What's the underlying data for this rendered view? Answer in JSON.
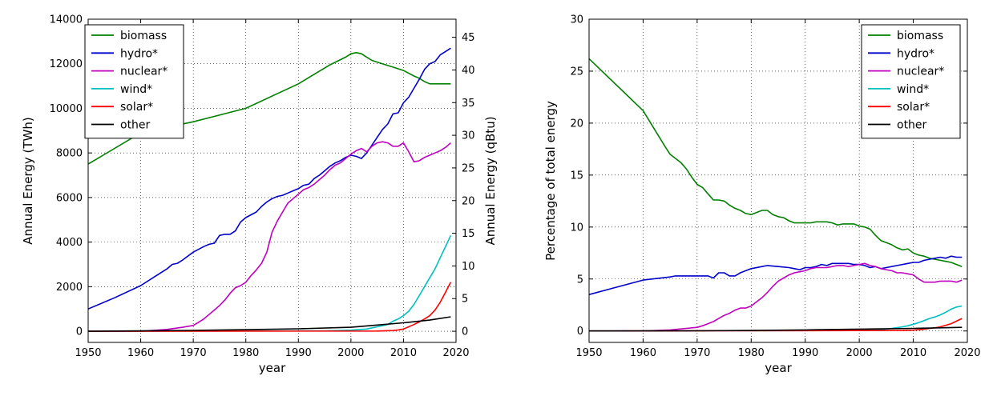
{
  "chart_data": [
    {
      "type": "line",
      "xlabel": "year",
      "ylabel": "Annual Energy (TWh)",
      "ylabel_right": "Annual Energy (qBtu)",
      "xlim": [
        1950,
        2020
      ],
      "ylim": [
        -500,
        14000
      ],
      "ylim_right": [
        -1.706,
        47.77
      ],
      "xticks": [
        1950,
        1960,
        1970,
        1980,
        1990,
        2000,
        2010,
        2020
      ],
      "yticks": [
        0,
        2000,
        4000,
        6000,
        8000,
        10000,
        12000,
        14000
      ],
      "yticks_right": [
        0,
        5,
        10,
        15,
        20,
        25,
        30,
        35,
        40,
        45
      ],
      "grid": true,
      "legend_position": "top-left",
      "series": [
        {
          "name": "biomass",
          "color": "#008000",
          "x": [
            1950,
            1960,
            1970,
            1980,
            1990,
            1996,
            1999,
            2000,
            2001,
            2002,
            2003,
            2004,
            2006,
            2008,
            2010,
            2012,
            2013,
            2014,
            2015,
            2016,
            2017,
            2018,
            2019
          ],
          "y": [
            7500,
            8900,
            9400,
            10000,
            11100,
            11950,
            12300,
            12450,
            12500,
            12450,
            12300,
            12150,
            12000,
            11850,
            11700,
            11450,
            11350,
            11200,
            11100,
            11100,
            11100,
            11100,
            11100
          ]
        },
        {
          "name": "hydro*",
          "color": "#0000cc",
          "x": [
            1950,
            1955,
            1960,
            1963,
            1965,
            1966,
            1967,
            1968,
            1970,
            1972,
            1973,
            1974,
            1975,
            1976,
            1977,
            1978,
            1979,
            1980,
            1982,
            1983,
            1984,
            1985,
            1986,
            1987,
            1988,
            1989,
            1990,
            1991,
            1992,
            1993,
            1994,
            1995,
            1996,
            1997,
            1998,
            1999,
            2000,
            2001,
            2002,
            2003,
            2004,
            2005,
            2006,
            2007,
            2008,
            2009,
            2010,
            2011,
            2012,
            2013,
            2014,
            2015,
            2016,
            2017,
            2018,
            2019
          ],
          "y": [
            1000,
            1500,
            2050,
            2500,
            2800,
            3000,
            3050,
            3200,
            3550,
            3800,
            3900,
            3950,
            4300,
            4350,
            4350,
            4500,
            4900,
            5100,
            5350,
            5600,
            5800,
            5950,
            6050,
            6100,
            6200,
            6300,
            6400,
            6550,
            6600,
            6850,
            7000,
            7200,
            7400,
            7550,
            7650,
            7800,
            7900,
            7850,
            7750,
            8000,
            8350,
            8700,
            9050,
            9300,
            9750,
            9800,
            10250,
            10500,
            10900,
            11300,
            11750,
            12000,
            12100,
            12400,
            12550,
            12700
          ]
        },
        {
          "name": "nuclear*",
          "color": "#bf00bf",
          "x": [
            1950,
            1960,
            1962,
            1965,
            1968,
            1970,
            1971,
            1972,
            1973,
            1974,
            1975,
            1976,
            1977,
            1978,
            1979,
            1980,
            1981,
            1982,
            1983,
            1984,
            1985,
            1986,
            1987,
            1988,
            1989,
            1990,
            1991,
            1992,
            1993,
            1994,
            1995,
            1996,
            1997,
            1998,
            1999,
            2000,
            2001,
            2002,
            2003,
            2004,
            2005,
            2006,
            2007,
            2008,
            2009,
            2010,
            2011,
            2012,
            2013,
            2014,
            2015,
            2016,
            2017,
            2018,
            2019
          ],
          "y": [
            0,
            0,
            30,
            80,
            180,
            260,
            400,
            550,
            750,
            950,
            1150,
            1400,
            1700,
            1950,
            2050,
            2200,
            2500,
            2750,
            3050,
            3550,
            4450,
            4950,
            5350,
            5750,
            5950,
            6150,
            6350,
            6450,
            6600,
            6800,
            7000,
            7250,
            7450,
            7550,
            7750,
            7950,
            8100,
            8200,
            8050,
            8300,
            8450,
            8500,
            8450,
            8300,
            8300,
            8450,
            8050,
            7600,
            7650,
            7800,
            7900,
            8000,
            8100,
            8250,
            8450
          ]
        },
        {
          "name": "wind*",
          "color": "#00bfbf",
          "x": [
            1950,
            1995,
            2000,
            2003,
            2005,
            2007,
            2008,
            2009,
            2010,
            2011,
            2012,
            2013,
            2014,
            2015,
            2016,
            2017,
            2018,
            2019
          ],
          "y": [
            0,
            20,
            50,
            100,
            200,
            300,
            450,
            550,
            700,
            900,
            1200,
            1600,
            2000,
            2400,
            2800,
            3300,
            3800,
            4300
          ]
        },
        {
          "name": "solar*",
          "color": "#ff0000",
          "x": [
            1950,
            2005,
            2008,
            2009,
            2010,
            2011,
            2012,
            2013,
            2014,
            2015,
            2016,
            2017,
            2018,
            2019
          ],
          "y": [
            0,
            10,
            30,
            60,
            100,
            200,
            300,
            420,
            550,
            700,
            950,
            1300,
            1750,
            2200
          ]
        },
        {
          "name": "other",
          "color": "#000000",
          "x": [
            1950,
            1970,
            1980,
            1990,
            2000,
            2005,
            2010,
            2015,
            2019
          ],
          "y": [
            0,
            40,
            70,
            110,
            180,
            280,
            380,
            500,
            650
          ]
        }
      ]
    },
    {
      "type": "line",
      "xlabel": "year",
      "ylabel": "Percentage of total energy",
      "xlim": [
        1950,
        2020
      ],
      "ylim": [
        -1.1,
        30
      ],
      "xticks": [
        1950,
        1960,
        1970,
        1980,
        1990,
        2000,
        2010,
        2020
      ],
      "yticks": [
        0,
        5,
        10,
        15,
        20,
        25,
        30
      ],
      "grid": true,
      "legend_position": "top-right",
      "series": [
        {
          "name": "biomass",
          "color": "#008000",
          "x": [
            1950,
            1960,
            1962,
            1964,
            1965,
            1966,
            1967,
            1968,
            1969,
            1970,
            1971,
            1972,
            1973,
            1974,
            1975,
            1976,
            1977,
            1978,
            1979,
            1980,
            1981,
            1982,
            1983,
            1984,
            1985,
            1986,
            1987,
            1988,
            1989,
            1990,
            1991,
            1992,
            1993,
            1994,
            1995,
            1996,
            1997,
            1998,
            1999,
            2000,
            2001,
            2002,
            2003,
            2004,
            2005,
            2006,
            2007,
            2008,
            2009,
            2010,
            2011,
            2012,
            2013,
            2014,
            2015,
            2016,
            2017,
            2018,
            2019
          ],
          "y": [
            26.2,
            21.2,
            19.5,
            17.8,
            17.0,
            16.6,
            16.2,
            15.6,
            14.8,
            14.1,
            13.8,
            13.2,
            12.6,
            12.6,
            12.5,
            12.1,
            11.8,
            11.6,
            11.3,
            11.2,
            11.4,
            11.6,
            11.6,
            11.2,
            11.0,
            10.9,
            10.6,
            10.4,
            10.4,
            10.4,
            10.4,
            10.5,
            10.5,
            10.5,
            10.4,
            10.2,
            10.3,
            10.3,
            10.3,
            10.1,
            10.0,
            9.8,
            9.2,
            8.7,
            8.5,
            8.3,
            8.0,
            7.8,
            7.9,
            7.5,
            7.3,
            7.2,
            7.0,
            6.9,
            6.8,
            6.7,
            6.6,
            6.4,
            6.2
          ]
        },
        {
          "name": "hydro*",
          "color": "#0000cc",
          "x": [
            1950,
            1960,
            1965,
            1966,
            1968,
            1970,
            1972,
            1973,
            1974,
            1975,
            1976,
            1977,
            1978,
            1979,
            1980,
            1982,
            1983,
            1985,
            1987,
            1988,
            1989,
            1990,
            1991,
            1992,
            1993,
            1994,
            1995,
            1996,
            1997,
            1998,
            1999,
            2000,
            2001,
            2002,
            2003,
            2004,
            2005,
            2006,
            2007,
            2008,
            2009,
            2010,
            2011,
            2012,
            2013,
            2014,
            2015,
            2016,
            2017,
            2018,
            2019
          ],
          "y": [
            3.5,
            4.9,
            5.2,
            5.3,
            5.3,
            5.3,
            5.3,
            5.1,
            5.6,
            5.6,
            5.3,
            5.3,
            5.6,
            5.8,
            6.0,
            6.2,
            6.3,
            6.2,
            6.1,
            6.0,
            5.9,
            6.1,
            6.1,
            6.2,
            6.4,
            6.3,
            6.5,
            6.5,
            6.5,
            6.5,
            6.4,
            6.4,
            6.3,
            6.1,
            6.2,
            6.0,
            6.1,
            6.2,
            6.3,
            6.4,
            6.5,
            6.6,
            6.6,
            6.8,
            6.9,
            7.0,
            7.1,
            7.0,
            7.2,
            7.1,
            7.1
          ]
        },
        {
          "name": "nuclear*",
          "color": "#bf00bf",
          "x": [
            1950,
            1960,
            1965,
            1968,
            1970,
            1971,
            1972,
            1973,
            1974,
            1975,
            1976,
            1977,
            1978,
            1979,
            1980,
            1981,
            1982,
            1983,
            1984,
            1985,
            1986,
            1987,
            1988,
            1989,
            1990,
            1991,
            1992,
            1993,
            1994,
            1995,
            1996,
            1997,
            1998,
            1999,
            2000,
            2001,
            2002,
            2003,
            2004,
            2005,
            2006,
            2007,
            2008,
            2009,
            2010,
            2011,
            2012,
            2013,
            2014,
            2015,
            2016,
            2017,
            2018,
            2019
          ],
          "y": [
            0,
            0,
            0.1,
            0.25,
            0.35,
            0.5,
            0.7,
            0.9,
            1.2,
            1.5,
            1.7,
            2.0,
            2.2,
            2.2,
            2.4,
            2.8,
            3.2,
            3.7,
            4.3,
            4.8,
            5.1,
            5.4,
            5.6,
            5.7,
            5.8,
            6.0,
            6.1,
            6.1,
            6.1,
            6.2,
            6.3,
            6.3,
            6.2,
            6.3,
            6.4,
            6.5,
            6.3,
            6.2,
            6.0,
            5.9,
            5.8,
            5.6,
            5.6,
            5.5,
            5.4,
            5.0,
            4.7,
            4.7,
            4.7,
            4.8,
            4.8,
            4.8,
            4.7,
            4.9
          ]
        },
        {
          "name": "wind*",
          "color": "#00bfbf",
          "x": [
            1950,
            2000,
            2004,
            2006,
            2008,
            2009,
            2010,
            2011,
            2012,
            2013,
            2014,
            2015,
            2016,
            2017,
            2018,
            2019
          ],
          "y": [
            0,
            0.05,
            0.12,
            0.25,
            0.4,
            0.5,
            0.65,
            0.8,
            1.0,
            1.2,
            1.35,
            1.55,
            1.8,
            2.1,
            2.3,
            2.4
          ]
        },
        {
          "name": "solar*",
          "color": "#ff0000",
          "x": [
            1950,
            2008,
            2010,
            2011,
            2012,
            2013,
            2014,
            2015,
            2016,
            2017,
            2018,
            2019
          ],
          "y": [
            0,
            0.05,
            0.08,
            0.12,
            0.18,
            0.25,
            0.3,
            0.4,
            0.55,
            0.7,
            0.95,
            1.2
          ]
        },
        {
          "name": "other",
          "color": "#000000",
          "x": [
            1950,
            1970,
            1980,
            1990,
            2000,
            2010,
            2019
          ],
          "y": [
            0,
            0.02,
            0.05,
            0.1,
            0.18,
            0.25,
            0.35
          ]
        }
      ]
    }
  ]
}
